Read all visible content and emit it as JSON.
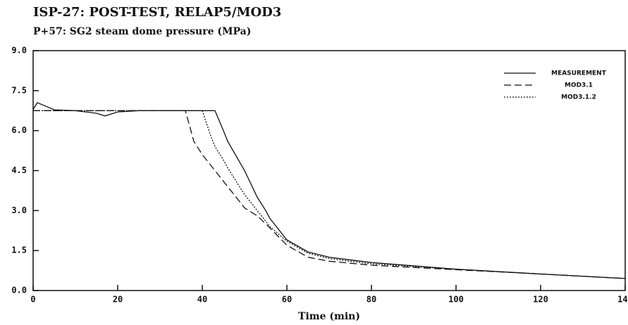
{
  "chart_data": {
    "type": "line",
    "title": "ISP-27: POST-TEST, RELAP5/MOD3",
    "subtitle": "P+57: SG2 steam dome pressure (MPa)",
    "xlabel": "Time (min)",
    "x": [
      0,
      1,
      5,
      10,
      15,
      17,
      20,
      25,
      30,
      36,
      38,
      40,
      42,
      43,
      45,
      46,
      50,
      53,
      55,
      56,
      60,
      65,
      70,
      80,
      100,
      120,
      140
    ],
    "series": [
      {
        "name": "MEASUREMENT",
        "color": "#111111",
        "dash": "solid",
        "values": [
          6.8,
          7.05,
          6.78,
          6.75,
          6.65,
          6.55,
          6.7,
          6.75,
          6.75,
          6.75,
          6.75,
          6.75,
          6.75,
          6.75,
          6.0,
          5.6,
          4.5,
          3.5,
          3.0,
          2.7,
          1.9,
          1.45,
          1.25,
          1.05,
          0.8,
          0.62,
          0.45
        ]
      },
      {
        "name": "MOD3.1",
        "color": "#111111",
        "dash": "dashed",
        "values": [
          6.75,
          6.75,
          6.75,
          6.75,
          6.75,
          6.75,
          6.75,
          6.75,
          6.75,
          6.75,
          5.6,
          5.1,
          4.7,
          4.5,
          4.1,
          3.9,
          3.1,
          2.8,
          2.5,
          2.35,
          1.7,
          1.25,
          1.1,
          0.95,
          0.78,
          0.62,
          0.45
        ]
      },
      {
        "name": "MOD3.1.2",
        "color": "#111111",
        "dash": "dotted",
        "values": [
          6.75,
          6.75,
          6.75,
          6.75,
          6.75,
          6.75,
          6.75,
          6.75,
          6.75,
          6.75,
          6.75,
          6.75,
          5.8,
          5.4,
          4.9,
          4.6,
          3.6,
          3.0,
          2.6,
          2.4,
          1.85,
          1.4,
          1.2,
          1.0,
          0.8,
          0.62,
          0.45
        ]
      }
    ],
    "xlim": [
      0,
      140
    ],
    "xticks": [
      0,
      20,
      40,
      60,
      80,
      100,
      120,
      140
    ],
    "ylim": [
      0,
      9
    ],
    "yticks": [
      {
        "value": 0,
        "label": "0.0"
      },
      {
        "value": 1.5,
        "label": "1.5"
      },
      {
        "value": 3,
        "label": "3.0"
      },
      {
        "value": 4.5,
        "label": "4.5"
      },
      {
        "value": 6,
        "label": "6.0"
      },
      {
        "value": 7.5,
        "label": "7.5"
      },
      {
        "value": 9,
        "label": "9.0"
      }
    ],
    "grid": false,
    "legend": "upper right"
  }
}
